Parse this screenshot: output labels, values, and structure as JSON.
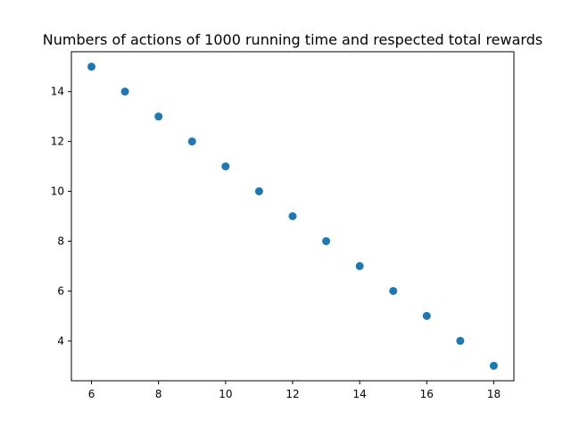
{
  "chart_data": {
    "type": "scatter",
    "title": "Numbers of actions of 1000 running time and respected total rewards",
    "xlabel": "",
    "ylabel": "",
    "x": [
      6,
      7,
      8,
      9,
      10,
      11,
      12,
      13,
      14,
      15,
      16,
      17,
      18
    ],
    "y": [
      15,
      14,
      13,
      12,
      11,
      10,
      9,
      8,
      7,
      6,
      5,
      4,
      3
    ],
    "xlim": [
      5.4,
      18.6
    ],
    "ylim": [
      2.4,
      15.6
    ],
    "xticks": [
      6,
      8,
      10,
      12,
      14,
      16,
      18
    ],
    "yticks": [
      4,
      6,
      8,
      10,
      12,
      14
    ],
    "grid": false,
    "marker_color": "#1f77b4"
  }
}
